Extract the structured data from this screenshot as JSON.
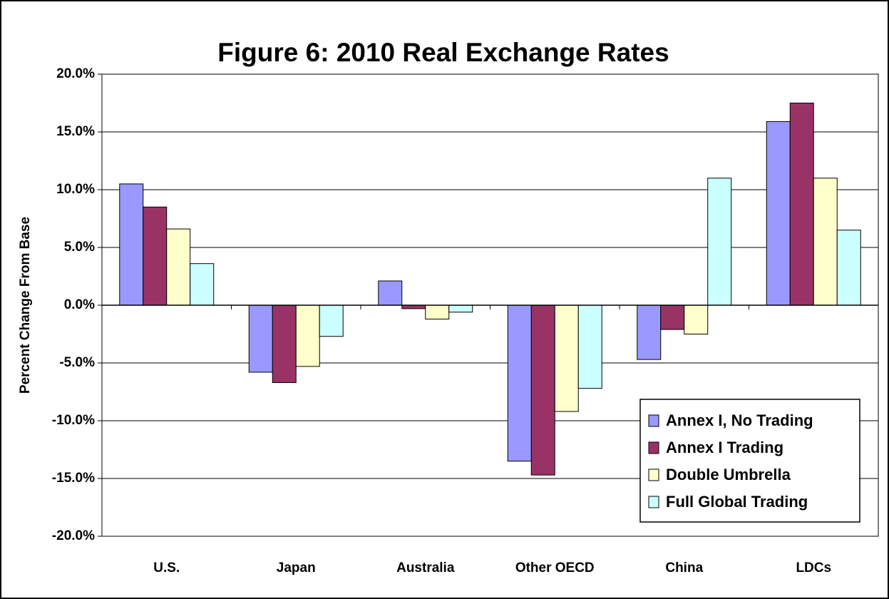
{
  "chart_data": {
    "type": "bar",
    "title": "Figure 6: 2010 Real Exchange Rates",
    "y_label": "Percent Change From Base",
    "categories": [
      "U.S.",
      "Japan",
      "Australia",
      "Other OECD",
      "China",
      "LDCs"
    ],
    "series": [
      {
        "name": "Annex I, No Trading",
        "color": "#9999ff",
        "values": [
          10.5,
          -5.8,
          2.1,
          -13.5,
          -4.7,
          15.9
        ]
      },
      {
        "name": "Annex I Trading",
        "color": "#993366",
        "values": [
          8.5,
          -6.7,
          -0.3,
          -14.7,
          -2.1,
          17.5
        ]
      },
      {
        "name": "Double Umbrella",
        "color": "#ffffcc",
        "values": [
          6.6,
          -5.3,
          -1.2,
          -9.2,
          -2.5,
          11.0
        ]
      },
      {
        "name": "Full Global Trading",
        "color": "#ccffff",
        "values": [
          3.6,
          -2.7,
          -0.6,
          -7.2,
          11.0,
          6.5
        ]
      }
    ],
    "ylim": [
      -20,
      20
    ],
    "yticks": [
      {
        "value": -20,
        "label": "-20.0%"
      },
      {
        "value": -15,
        "label": "-15.0%"
      },
      {
        "value": -10,
        "label": "-10.0%"
      },
      {
        "value": -5,
        "label": "-5.0%"
      },
      {
        "value": 0,
        "label": "0.0%"
      },
      {
        "value": 5,
        "label": "5.0%"
      },
      {
        "value": 10,
        "label": "10.0%"
      },
      {
        "value": 15,
        "label": "15.0%"
      },
      {
        "value": 20,
        "label": "20.0%"
      }
    ],
    "grid": true,
    "legend": "lower-right"
  }
}
